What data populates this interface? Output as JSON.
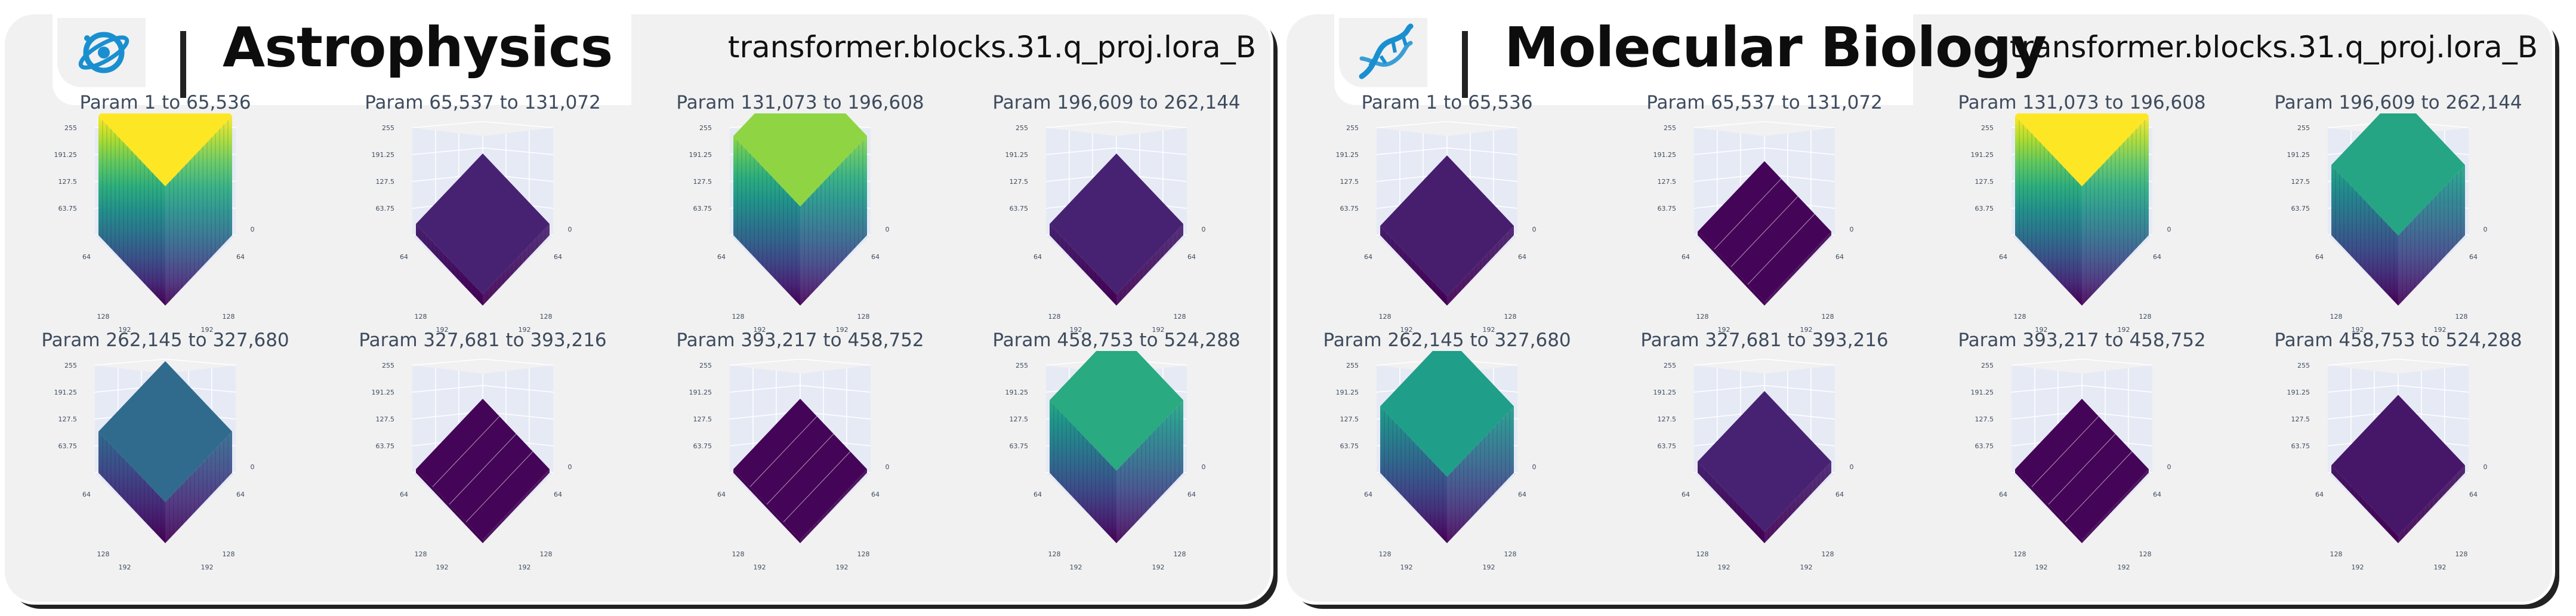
{
  "layer_name": "transformer.blocks.31.q_proj.lora_B",
  "panels": [
    {
      "domain": "Astrophysics",
      "icon": "galaxy-icon",
      "accent": "#1a8fd0"
    },
    {
      "domain": "Molecular Biology",
      "icon": "dna-icon",
      "accent": "#1a8fd0"
    }
  ],
  "chart_data": [
    {
      "type": "bar",
      "domain": "Astrophysics",
      "layer": "transformer.blocks.31.q_proj.lora_B",
      "zlim": [
        0,
        255
      ],
      "z_ticks": [
        "255",
        "191.25",
        "127.5",
        "63.75"
      ],
      "x_ticks": [
        "0",
        "64",
        "128",
        "192"
      ],
      "y_ticks": [
        "0",
        "64",
        "128",
        "192"
      ],
      "colorscale": "viridis",
      "subplots": [
        {
          "title": "Param 1 to 65,536",
          "value": 255
        },
        {
          "title": "Param 65,537 to 131,072",
          "value": 24
        },
        {
          "title": "Param 131,073 to 196,608",
          "value": 212
        },
        {
          "title": "Param 196,609 to 262,144",
          "value": 24
        },
        {
          "title": "Param 262,145 to 327,680",
          "value": 88
        },
        {
          "title": "Param 327,681 to 393,216",
          "value": 2
        },
        {
          "title": "Param 393,217 to 458,752",
          "value": 2
        },
        {
          "title": "Param 458,753 to 524,288",
          "value": 155
        }
      ]
    },
    {
      "type": "bar",
      "domain": "Molecular Biology",
      "layer": "transformer.blocks.31.q_proj.lora_B",
      "zlim": [
        0,
        255
      ],
      "z_ticks": [
        "255",
        "191.25",
        "127.5",
        "63.75"
      ],
      "x_ticks": [
        "0",
        "64",
        "128",
        "192"
      ],
      "y_ticks": [
        "0",
        "64",
        "128",
        "192"
      ],
      "colorscale": "viridis",
      "subplots": [
        {
          "title": "Param 1 to 65,536",
          "value": 20
        },
        {
          "title": "Param 65,537 to 131,072",
          "value": 2
        },
        {
          "title": "Param 131,073 to 196,608",
          "value": 255
        },
        {
          "title": "Param 196,609 to 262,144",
          "value": 150
        },
        {
          "title": "Param 262,145 to 327,680",
          "value": 142
        },
        {
          "title": "Param 327,681 to 393,216",
          "value": 24
        },
        {
          "title": "Param 393,217 to 458,752",
          "value": 2
        },
        {
          "title": "Param 458,753 to 524,288",
          "value": 16
        }
      ]
    }
  ]
}
